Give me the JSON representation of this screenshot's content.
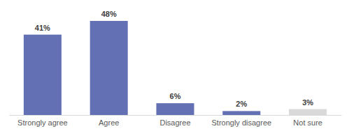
{
  "chart_data": {
    "type": "bar",
    "categories": [
      "Strongly agree",
      "Agree",
      "Disagree",
      "Strongly disagree",
      "Not sure"
    ],
    "values": [
      41,
      48,
      6,
      2,
      3
    ],
    "value_labels": [
      "41%",
      "48%",
      "6%",
      "2%",
      "3%"
    ],
    "colors": [
      "#6470b4",
      "#6470b4",
      "#6470b4",
      "#6470b4",
      "#d9d9d9"
    ],
    "data_labels": true,
    "tick_labels": "x"
  }
}
